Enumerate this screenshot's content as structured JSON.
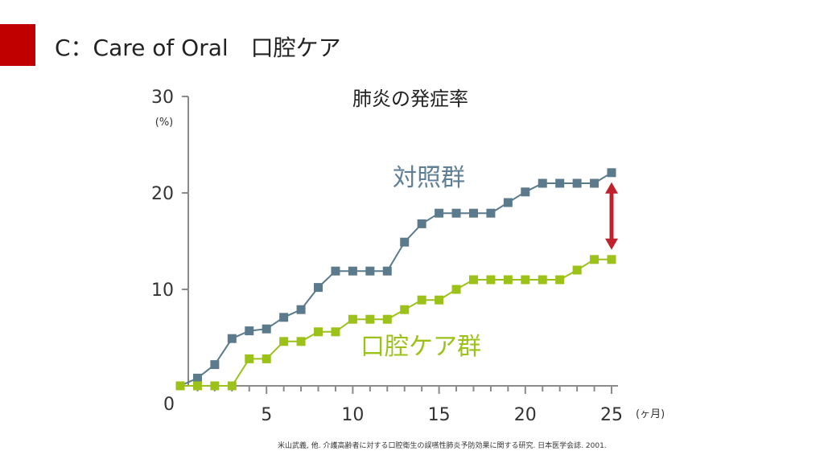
{
  "slide": {
    "title": "C：Care of Oral　口腔ケア",
    "accent_color": "#C00000",
    "citation": "米山武義, 他. 介護高齢者に対する口腔衛生の誤嚥性肺炎予防効果に関する研究. 日本医学会誌. 2001."
  },
  "chart_data": {
    "type": "line",
    "title": "肺炎の発症率",
    "ylabel": "(%)",
    "xlabel": "(ヶ月)",
    "xlim": [
      0,
      25
    ],
    "ylim": [
      0,
      30
    ],
    "x_ticks": [
      5,
      10,
      15,
      20,
      25
    ],
    "y_ticks": [
      0,
      10,
      20,
      30
    ],
    "x": [
      0,
      1,
      2,
      3,
      4,
      5,
      6,
      7,
      8,
      9,
      10,
      11,
      12,
      13,
      14,
      15,
      16,
      17,
      18,
      19,
      20,
      21,
      22,
      23,
      24,
      25
    ],
    "series": [
      {
        "name": "対照群",
        "color": "#5B7B8C",
        "label_color": "#5E7F95",
        "values": [
          0,
          0.8,
          2.2,
          4.9,
          5.7,
          5.9,
          7.1,
          7.9,
          10.2,
          11.9,
          11.9,
          11.9,
          11.9,
          14.9,
          16.8,
          17.9,
          17.9,
          17.9,
          17.9,
          19.0,
          20.1,
          21.0,
          21.0,
          21.0,
          21.0,
          22.1
        ]
      },
      {
        "name": "口腔ケア群",
        "color": "#9CC21A",
        "label_color": "#9CC21A",
        "values": [
          0,
          0,
          0,
          0,
          2.8,
          2.8,
          4.6,
          4.6,
          5.6,
          5.6,
          6.9,
          6.9,
          6.9,
          7.9,
          8.9,
          8.9,
          10.0,
          11.0,
          11.0,
          11.0,
          11.0,
          11.0,
          11.0,
          12.0,
          13.1,
          13.1
        ]
      }
    ],
    "difference_arrow": {
      "x": 25,
      "from": 13.1,
      "to": 22.1,
      "color": "#C0222D"
    }
  }
}
